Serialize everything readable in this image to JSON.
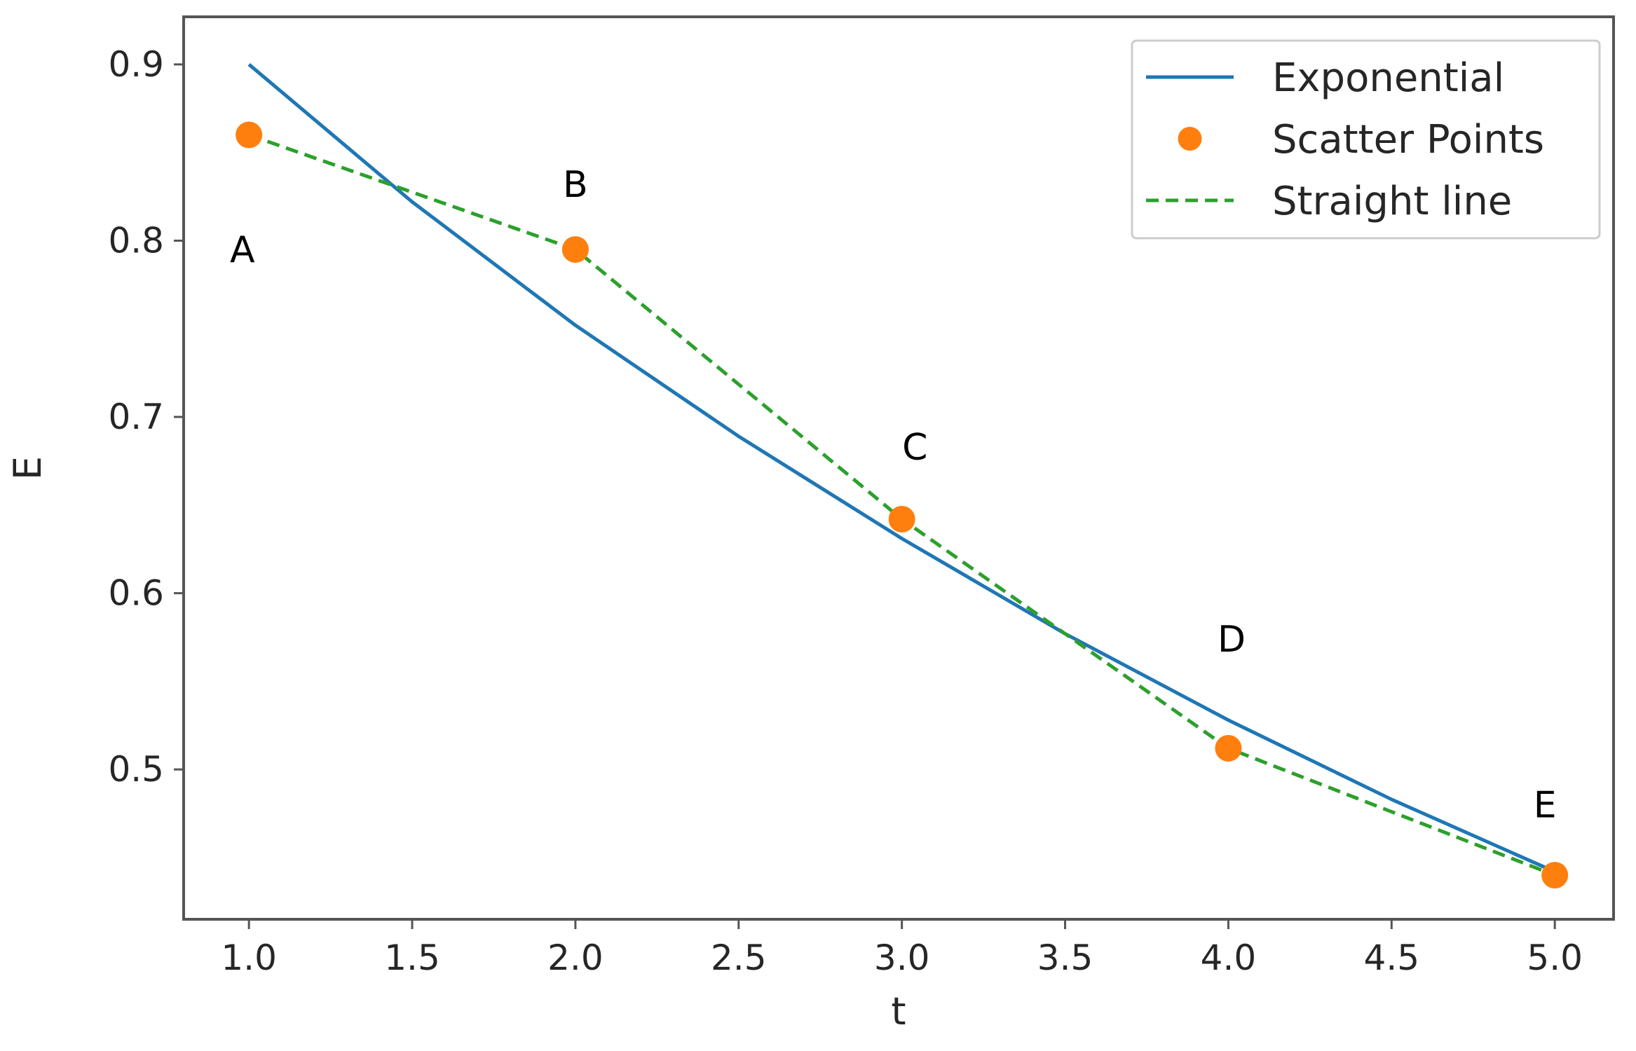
{
  "chart_data": {
    "type": "line",
    "xlabel": "t",
    "ylabel": "E",
    "xlim": [
      0.8,
      5.18
    ],
    "ylim": [
      0.415,
      0.927
    ],
    "x_ticks": [
      1.0,
      1.5,
      2.0,
      2.5,
      3.0,
      3.5,
      4.0,
      4.5,
      5.0
    ],
    "x_tick_labels": [
      "1.0",
      "1.5",
      "2.0",
      "2.5",
      "3.0",
      "3.5",
      "4.0",
      "4.5",
      "5.0"
    ],
    "y_ticks": [
      0.5,
      0.6,
      0.7,
      0.8,
      0.9
    ],
    "y_tick_labels": [
      "0.5",
      "0.6",
      "0.7",
      "0.8",
      "0.9"
    ],
    "grid": false,
    "legend_position": "top-right",
    "series": [
      {
        "name": "Exponential",
        "kind": "line",
        "style": "solid",
        "color": "#1f77b4",
        "x": [
          1.0,
          1.5,
          2.0,
          2.5,
          3.0,
          3.5,
          4.0,
          4.5,
          5.0
        ],
        "y": [
          0.9,
          0.822,
          0.752,
          0.689,
          0.631,
          0.577,
          0.528,
          0.483,
          0.442
        ]
      },
      {
        "name": "Scatter Points",
        "kind": "scatter",
        "color": "#ff7f0e",
        "x": [
          1.0,
          2.0,
          3.0,
          4.0,
          5.0
        ],
        "y": [
          0.86,
          0.795,
          0.642,
          0.512,
          0.44
        ]
      },
      {
        "name": "Straight line",
        "kind": "line",
        "style": "dashed",
        "color": "#2ca02c",
        "x": [
          1.0,
          2.0,
          3.0,
          4.0,
          5.0
        ],
        "y": [
          0.86,
          0.795,
          0.642,
          0.512,
          0.44
        ]
      }
    ],
    "annotations": [
      {
        "text": "A",
        "x": 0.98,
        "y": 0.795
      },
      {
        "text": "B",
        "x": 2.0,
        "y": 0.832
      },
      {
        "text": "C",
        "x": 3.04,
        "y": 0.683
      },
      {
        "text": "D",
        "x": 4.01,
        "y": 0.574
      },
      {
        "text": "E",
        "x": 4.97,
        "y": 0.48
      }
    ]
  }
}
